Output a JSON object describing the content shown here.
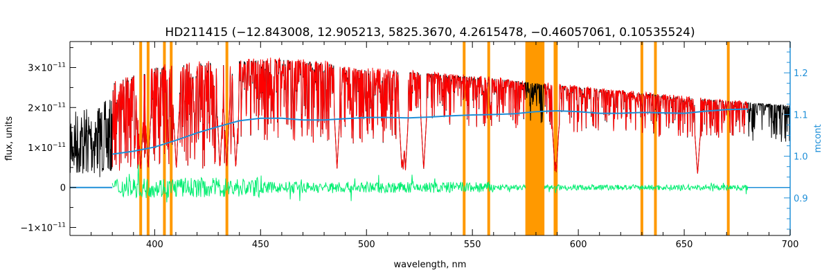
{
  "chart_data": {
    "type": "line",
    "title": "HD211415    (−12.843008, 12.905213, 5825.3670, 4.2615478, −0.46057061, 0.10535524)",
    "xlabel": "wavelength, nm",
    "ylabel": "flux, units",
    "y2label": "mcont",
    "xlim": [
      360,
      700
    ],
    "ylim": [
      -1.2e-11,
      3.65e-11
    ],
    "y2lim": [
      0.81,
      1.275
    ],
    "x_ticks": [
      400,
      450,
      500,
      550,
      600,
      650,
      700
    ],
    "x_tick_labels": [
      "400",
      "450",
      "500",
      "550",
      "600",
      "650",
      "700"
    ],
    "y_ticks": [
      -1e-11,
      0,
      1e-11,
      2e-11,
      3e-11
    ],
    "y_tick_labels": [
      {
        "mant": "−1×10",
        "exp": "−11"
      },
      {
        "mant": "0",
        "exp": ""
      },
      {
        "mant": "1×10",
        "exp": "−11"
      },
      {
        "mant": "2×10",
        "exp": "−11"
      },
      {
        "mant": "3×10",
        "exp": "−11"
      }
    ],
    "y2_ticks": [
      0.9,
      1.0,
      1.1,
      1.2
    ],
    "y2_tick_labels": [
      "0.9",
      "1.0",
      "1.1",
      "1.2"
    ],
    "orange_lines": [
      393.4,
      396.9,
      404.6,
      407.8,
      434.1,
      546.1,
      557.7,
      589.0,
      589.6,
      630.0,
      636.4,
      670.8
    ],
    "orange_band": [
      575,
      584
    ],
    "continuum": {
      "name": "mcont",
      "x": [
        380,
        390,
        400,
        410,
        420,
        430,
        440,
        450,
        460,
        470,
        480,
        490,
        500,
        510,
        520,
        530,
        540,
        550,
        560,
        570,
        580,
        590,
        600,
        610,
        620,
        630,
        640,
        650,
        660,
        670,
        680
      ],
      "values": [
        1.005,
        1.012,
        1.022,
        1.038,
        1.056,
        1.071,
        1.085,
        1.091,
        1.091,
        1.087,
        1.087,
        1.09,
        1.093,
        1.093,
        1.092,
        1.094,
        1.097,
        1.099,
        1.1,
        1.102,
        1.107,
        1.109,
        1.107,
        1.103,
        1.103,
        1.105,
        1.104,
        1.103,
        1.108,
        1.112,
        1.113
      ]
    },
    "observed_envelope": {
      "x": [
        360,
        380,
        400,
        420,
        440,
        450,
        460,
        470,
        480,
        490,
        500,
        520,
        540,
        560,
        580,
        600,
        620,
        640,
        660,
        680,
        700
      ],
      "values": [
        2.3e-11,
        2.6e-11,
        3e-11,
        3.1e-11,
        3.15e-11,
        3.18e-11,
        3.2e-11,
        3.16e-11,
        3.12e-11,
        2.98e-11,
        2.95e-11,
        2.88e-11,
        2.8e-11,
        2.72e-11,
        2.6e-11,
        2.5e-11,
        2.4e-11,
        2.3e-11,
        2.2e-11,
        2.12e-11,
        2.05e-11
      ]
    },
    "model_range": [
      380,
      680
    ],
    "residual_range": [
      380,
      680
    ],
    "series_colors": {
      "observed": "#000000",
      "model": "#ff0000",
      "residual": "#00ee70",
      "continuum": "#1e8fd8",
      "masked": "#ff9900",
      "highlight": "#ffee00"
    }
  }
}
